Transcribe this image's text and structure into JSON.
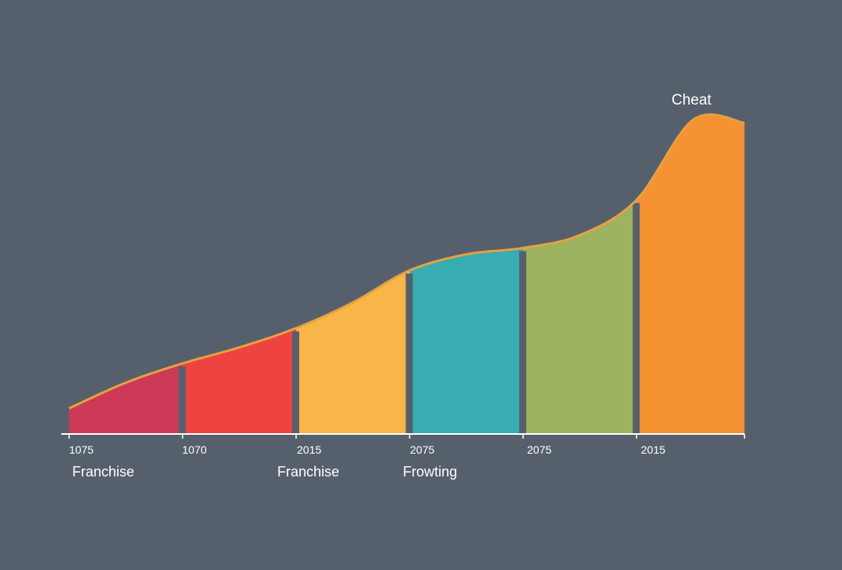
{
  "chart_data": {
    "type": "area",
    "title": "",
    "xlabel": "",
    "ylabel": "",
    "background_color": "#56606d",
    "line_color": "#e8a040",
    "axis_color": "#ffffff",
    "grid": false,
    "legend": "none",
    "tick_labels": [
      "1075",
      "1070",
      "2015",
      "2075",
      "2075",
      "2015"
    ],
    "category_labels": [
      "Franchise",
      "Franchise",
      "Frowting"
    ],
    "annotation": "Cheat",
    "ylim": [
      0,
      100
    ],
    "curve": [
      {
        "x": 0,
        "y": 8
      },
      {
        "x": 0.5,
        "y": 16
      },
      {
        "x": 1,
        "y": 22
      },
      {
        "x": 1.5,
        "y": 27
      },
      {
        "x": 2,
        "y": 33
      },
      {
        "x": 2.5,
        "y": 41
      },
      {
        "x": 3,
        "y": 51
      },
      {
        "x": 3.5,
        "y": 56
      },
      {
        "x": 4,
        "y": 58
      },
      {
        "x": 4.5,
        "y": 62
      },
      {
        "x": 5,
        "y": 73
      },
      {
        "x": 5.5,
        "y": 98
      },
      {
        "x": 5.95,
        "y": 97
      }
    ],
    "segments": [
      {
        "start": 0,
        "end": 1,
        "color": "#cc3a58"
      },
      {
        "start": 1,
        "end": 2,
        "color": "#ef4340"
      },
      {
        "start": 2,
        "end": 3,
        "color": "#f8b648"
      },
      {
        "start": 3,
        "end": 4,
        "color": "#37adb2"
      },
      {
        "start": 4,
        "end": 5,
        "color": "#9db35f"
      },
      {
        "start": 5,
        "end": 5.95,
        "color": "#f59232"
      }
    ]
  }
}
